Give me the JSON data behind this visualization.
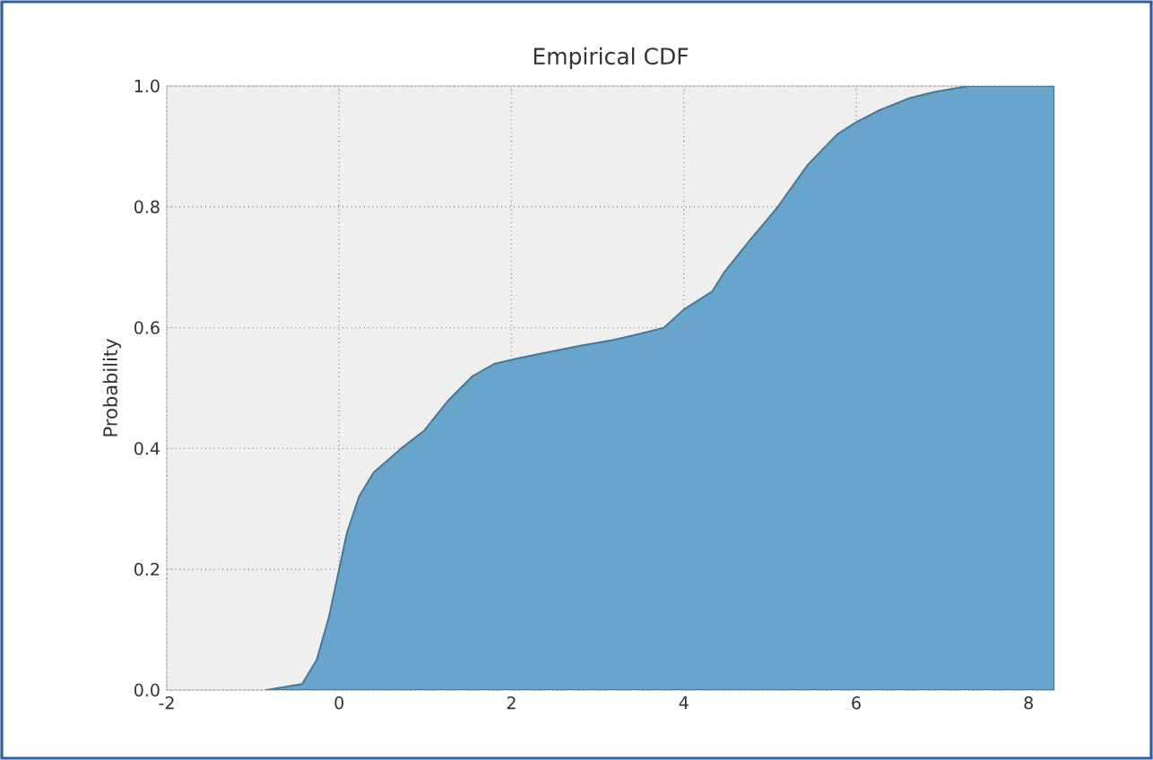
{
  "chart_data": {
    "type": "area",
    "title": "Empirical CDF",
    "ylabel": "Probability",
    "x": [
      -0.85,
      -0.43,
      -0.26,
      -0.12,
      0.0,
      0.09,
      0.23,
      0.4,
      0.72,
      0.99,
      1.27,
      1.55,
      1.8,
      2.1,
      2.8,
      3.2,
      3.5,
      3.77,
      4.0,
      4.33,
      4.46,
      4.74,
      5.09,
      5.44,
      5.78,
      6.0,
      6.27,
      6.62,
      6.9,
      7.3,
      7.7,
      8.3
    ],
    "series": [
      {
        "color": "#67a5cc",
        "values": [
          0,
          0.01,
          0.05,
          0.12,
          0.2,
          0.26,
          0.32,
          0.36,
          0.4,
          0.43,
          0.48,
          0.52,
          0.54,
          0.55,
          0.57,
          0.58,
          0.59,
          0.6,
          0.63,
          0.66,
          0.69,
          0.74,
          0.8,
          0.87,
          0.92,
          0.94,
          0.96,
          0.98,
          0.99,
          1.0,
          1.0,
          1.0
        ]
      }
    ],
    "xlim": [
      -2,
      8.3
    ],
    "ylim": [
      0,
      1
    ],
    "xticks": [
      -2,
      0,
      2,
      4,
      6,
      8
    ],
    "yticks": [
      {
        "value": 0,
        "label": "0.0"
      },
      0.2,
      0.4,
      0.6,
      0.8,
      {
        "value": 1,
        "label": "1.0"
      }
    ],
    "grid": true
  }
}
